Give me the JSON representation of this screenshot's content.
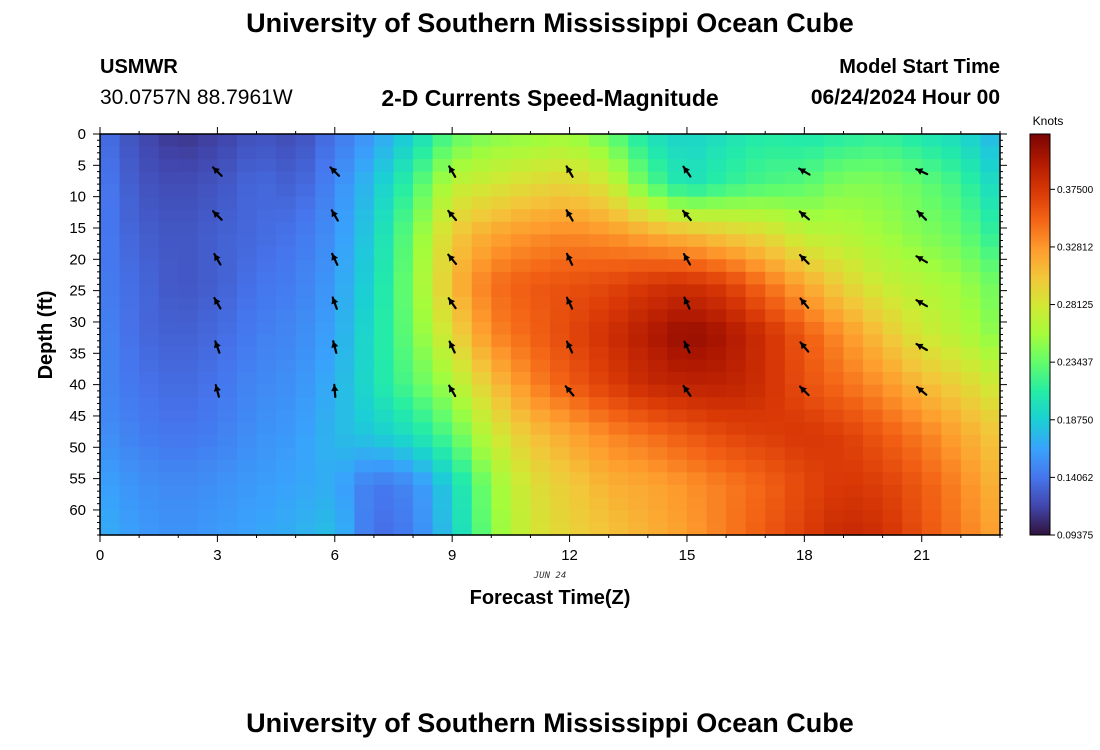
{
  "header": {
    "title": "University of Southern Mississippi Ocean Cube",
    "station": "USMWR",
    "coords": "30.0757N  88.7961W",
    "subtitle": "2-D Currents Speed-Magnitude",
    "model_label": "Model Start Time",
    "model_time": "06/24/2024 Hour 00"
  },
  "footer": {
    "title": "University of Southern Mississippi Ocean Cube"
  },
  "chart_data": {
    "type": "heatmap",
    "title": "2-D Currents Speed-Magnitude",
    "xlabel": "Forecast Time(Z)",
    "ylabel": "Depth (ft)",
    "date_label": "JUN 24",
    "x_ticks": [
      0,
      3,
      6,
      9,
      12,
      15,
      18,
      21
    ],
    "y_ticks": [
      0,
      5,
      10,
      15,
      20,
      25,
      30,
      35,
      40,
      45,
      50,
      55,
      60
    ],
    "xlim": [
      0,
      23
    ],
    "ylim": [
      0,
      64
    ],
    "colorbar": {
      "label": "Knots",
      "min": 0.09375,
      "max": 0.42,
      "ticks": [
        "0.09375",
        "0.14062",
        "0.18750",
        "0.23437",
        "0.28125",
        "0.32812",
        "0.37500"
      ],
      "tick_values": [
        0.09375,
        0.140625,
        0.1875,
        0.234375,
        0.28125,
        0.328125,
        0.375
      ]
    },
    "speed_times": [
      0,
      1,
      2,
      3,
      4,
      5,
      6,
      7,
      8,
      9,
      10,
      11,
      12,
      13,
      14,
      15,
      16,
      17,
      18,
      19,
      20,
      21,
      22,
      23
    ],
    "speed_depths": [
      0,
      8,
      16,
      24,
      32,
      40,
      48,
      56,
      64
    ],
    "speed_knots": [
      [
        0.14,
        0.12,
        0.11,
        0.115,
        0.125,
        0.12,
        0.14,
        0.16,
        0.19,
        0.23,
        0.245,
        0.25,
        0.255,
        0.235,
        0.2,
        0.19,
        0.2,
        0.21,
        0.205,
        0.21,
        0.215,
        0.205,
        0.195,
        0.17
      ],
      [
        0.145,
        0.125,
        0.12,
        0.125,
        0.135,
        0.13,
        0.15,
        0.18,
        0.22,
        0.27,
        0.28,
        0.29,
        0.295,
        0.28,
        0.23,
        0.2,
        0.215,
        0.225,
        0.23,
        0.245,
        0.245,
        0.235,
        0.22,
        0.19
      ],
      [
        0.145,
        0.13,
        0.125,
        0.13,
        0.135,
        0.14,
        0.155,
        0.19,
        0.24,
        0.3,
        0.32,
        0.33,
        0.335,
        0.33,
        0.32,
        0.31,
        0.3,
        0.29,
        0.27,
        0.265,
        0.255,
        0.245,
        0.235,
        0.21
      ],
      [
        0.145,
        0.135,
        0.125,
        0.13,
        0.14,
        0.145,
        0.16,
        0.195,
        0.245,
        0.31,
        0.345,
        0.355,
        0.36,
        0.365,
        0.375,
        0.38,
        0.37,
        0.345,
        0.32,
        0.295,
        0.275,
        0.265,
        0.255,
        0.235
      ],
      [
        0.15,
        0.135,
        0.13,
        0.135,
        0.145,
        0.15,
        0.165,
        0.2,
        0.24,
        0.29,
        0.335,
        0.35,
        0.365,
        0.38,
        0.395,
        0.41,
        0.4,
        0.38,
        0.355,
        0.33,
        0.305,
        0.28,
        0.265,
        0.245
      ],
      [
        0.15,
        0.14,
        0.135,
        0.14,
        0.15,
        0.155,
        0.17,
        0.2,
        0.23,
        0.26,
        0.305,
        0.335,
        0.355,
        0.37,
        0.385,
        0.39,
        0.39,
        0.38,
        0.36,
        0.345,
        0.33,
        0.31,
        0.295,
        0.275
      ],
      [
        0.155,
        0.145,
        0.14,
        0.145,
        0.155,
        0.16,
        0.175,
        0.185,
        0.2,
        0.23,
        0.275,
        0.305,
        0.32,
        0.335,
        0.345,
        0.355,
        0.365,
        0.37,
        0.375,
        0.37,
        0.355,
        0.34,
        0.32,
        0.3
      ],
      [
        0.165,
        0.155,
        0.15,
        0.155,
        0.16,
        0.165,
        0.17,
        0.14,
        0.15,
        0.19,
        0.25,
        0.285,
        0.3,
        0.315,
        0.32,
        0.33,
        0.34,
        0.35,
        0.365,
        0.375,
        0.37,
        0.355,
        0.335,
        0.31
      ],
      [
        0.17,
        0.16,
        0.155,
        0.16,
        0.165,
        0.17,
        0.18,
        0.135,
        0.145,
        0.185,
        0.245,
        0.28,
        0.295,
        0.305,
        0.315,
        0.325,
        0.34,
        0.355,
        0.37,
        0.385,
        0.38,
        0.36,
        0.34,
        0.32
      ]
    ],
    "vectors": [
      {
        "hour": 3,
        "depth": 6,
        "dir_deg": 315
      },
      {
        "hour": 3,
        "depth": 13,
        "dir_deg": 315
      },
      {
        "hour": 3,
        "depth": 20,
        "dir_deg": 330
      },
      {
        "hour": 3,
        "depth": 27,
        "dir_deg": 330
      },
      {
        "hour": 3,
        "depth": 34,
        "dir_deg": 340
      },
      {
        "hour": 3,
        "depth": 41,
        "dir_deg": 345
      },
      {
        "hour": 6,
        "depth": 6,
        "dir_deg": 315
      },
      {
        "hour": 6,
        "depth": 13,
        "dir_deg": 330
      },
      {
        "hour": 6,
        "depth": 20,
        "dir_deg": 335
      },
      {
        "hour": 6,
        "depth": 27,
        "dir_deg": 340
      },
      {
        "hour": 6,
        "depth": 34,
        "dir_deg": 345
      },
      {
        "hour": 6,
        "depth": 41,
        "dir_deg": 355
      },
      {
        "hour": 9,
        "depth": 6,
        "dir_deg": 330
      },
      {
        "hour": 9,
        "depth": 13,
        "dir_deg": 320
      },
      {
        "hour": 9,
        "depth": 20,
        "dir_deg": 320
      },
      {
        "hour": 9,
        "depth": 27,
        "dir_deg": 325
      },
      {
        "hour": 9,
        "depth": 34,
        "dir_deg": 335
      },
      {
        "hour": 9,
        "depth": 41,
        "dir_deg": 330
      },
      {
        "hour": 12,
        "depth": 6,
        "dir_deg": 330
      },
      {
        "hour": 12,
        "depth": 13,
        "dir_deg": 330
      },
      {
        "hour": 12,
        "depth": 20,
        "dir_deg": 335
      },
      {
        "hour": 12,
        "depth": 27,
        "dir_deg": 335
      },
      {
        "hour": 12,
        "depth": 34,
        "dir_deg": 335
      },
      {
        "hour": 12,
        "depth": 41,
        "dir_deg": 320
      },
      {
        "hour": 15,
        "depth": 6,
        "dir_deg": 325
      },
      {
        "hour": 15,
        "depth": 13,
        "dir_deg": 320
      },
      {
        "hour": 15,
        "depth": 20,
        "dir_deg": 330
      },
      {
        "hour": 15,
        "depth": 27,
        "dir_deg": 335
      },
      {
        "hour": 15,
        "depth": 34,
        "dir_deg": 335
      },
      {
        "hour": 15,
        "depth": 41,
        "dir_deg": 325
      },
      {
        "hour": 18,
        "depth": 6,
        "dir_deg": 300
      },
      {
        "hour": 18,
        "depth": 13,
        "dir_deg": 310
      },
      {
        "hour": 18,
        "depth": 20,
        "dir_deg": 315
      },
      {
        "hour": 18,
        "depth": 27,
        "dir_deg": 320
      },
      {
        "hour": 18,
        "depth": 34,
        "dir_deg": 320
      },
      {
        "hour": 18,
        "depth": 41,
        "dir_deg": 315
      },
      {
        "hour": 21,
        "depth": 6,
        "dir_deg": 295
      },
      {
        "hour": 21,
        "depth": 13,
        "dir_deg": 315
      },
      {
        "hour": 21,
        "depth": 20,
        "dir_deg": 300
      },
      {
        "hour": 21,
        "depth": 27,
        "dir_deg": 300
      },
      {
        "hour": 21,
        "depth": 34,
        "dir_deg": 300
      },
      {
        "hour": 21,
        "depth": 41,
        "dir_deg": 310
      }
    ],
    "colormap": [
      "#30123b",
      "#4145ab",
      "#4675ed",
      "#39a2fc",
      "#1bcfd4",
      "#24eca6",
      "#61fc6c",
      "#a4fc3b",
      "#d1e834",
      "#f3c63a",
      "#fe9b2d",
      "#f36315",
      "#d93806",
      "#b11901",
      "#7a0403"
    ]
  }
}
